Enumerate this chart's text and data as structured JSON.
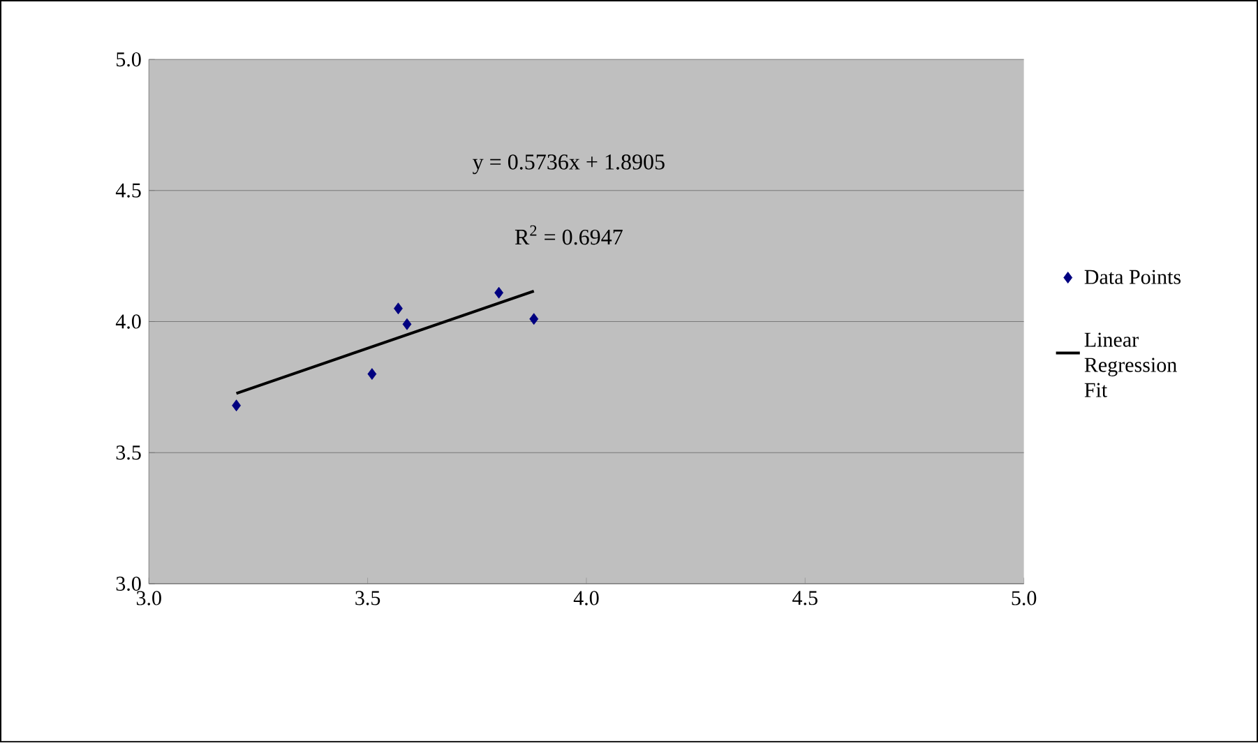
{
  "chart_data": {
    "type": "scatter",
    "xlim": [
      3.0,
      5.0
    ],
    "ylim": [
      3.0,
      5.0
    ],
    "xticks": [
      {
        "value": 3,
        "label": "3.0"
      },
      {
        "value": 3.5,
        "label": "3.5"
      },
      {
        "value": 4,
        "label": "4.0"
      },
      {
        "value": 4.5,
        "label": "4.5"
      },
      {
        "value": 5,
        "label": "5.0"
      }
    ],
    "yticks": [
      {
        "value": 3,
        "label": "3.0"
      },
      {
        "value": 3.5,
        "label": "3.5"
      },
      {
        "value": 4,
        "label": "4.0"
      },
      {
        "value": 4.5,
        "label": "4.5"
      },
      {
        "value": 5,
        "label": "5.0"
      }
    ],
    "grid": "y",
    "legend": "right",
    "series": [
      {
        "name": "Data Points",
        "marker": "diamond",
        "color": "#000080",
        "x": [
          3.2,
          3.51,
          3.57,
          3.59,
          3.8,
          3.88
        ],
        "values": [
          3.68,
          3.8,
          4.05,
          3.99,
          4.11,
          4.01
        ]
      },
      {
        "name": "Linear Regression Fit",
        "type": "line",
        "color": "#000000",
        "x": [
          3.2,
          3.88
        ],
        "values": [
          3.726,
          4.116
        ]
      }
    ],
    "annotations": [
      "y = 0.5736x + 1.8905",
      "R$^{2}$ = 0.6947"
    ]
  }
}
